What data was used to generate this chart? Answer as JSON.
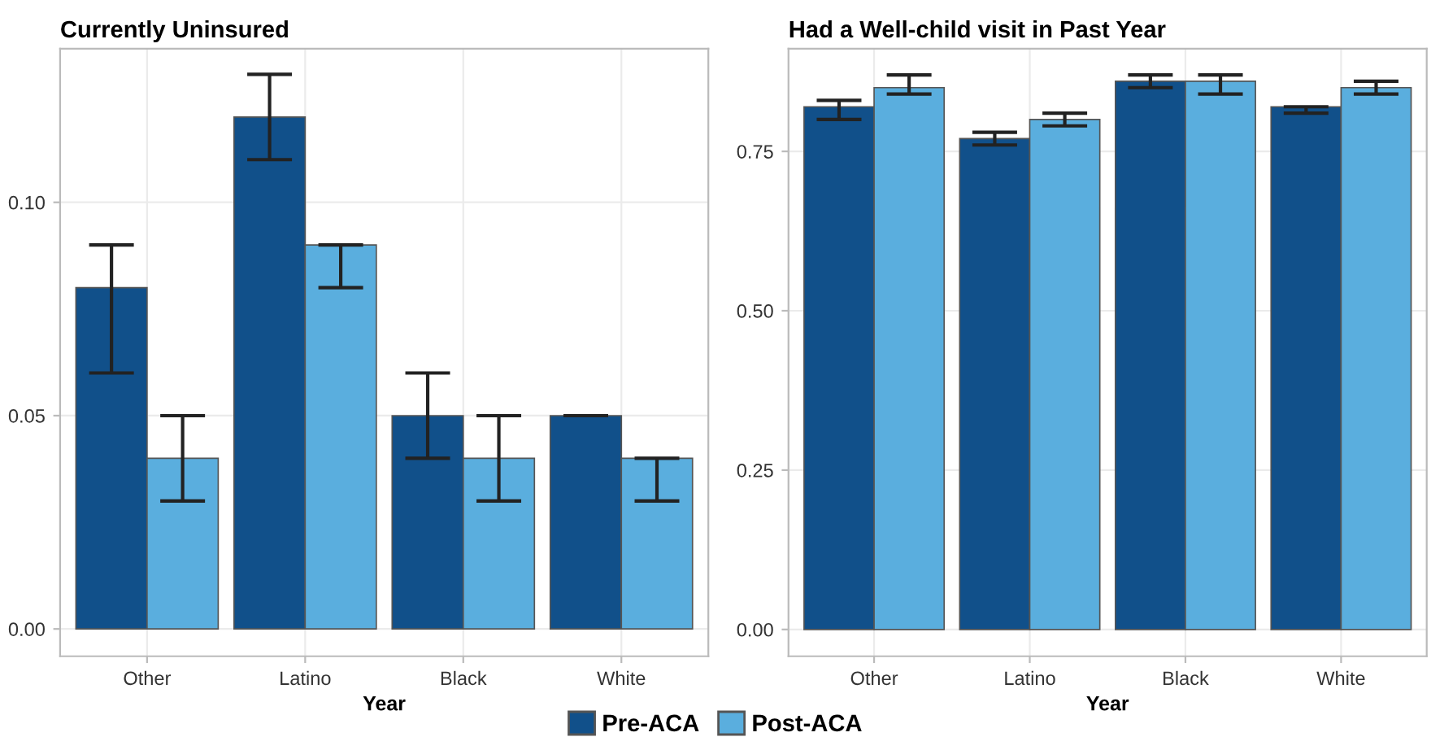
{
  "chart_data": [
    {
      "type": "bar",
      "title": "Currently Uninsured",
      "xlabel": "Year",
      "categories": [
        "Other",
        "Latino",
        "Black",
        "White"
      ],
      "series": [
        {
          "name": "Pre-ACA",
          "color": "#11508a",
          "values": [
            0.08,
            0.12,
            0.05,
            0.05
          ],
          "errors": [
            [
              0.06,
              0.09
            ],
            [
              0.11,
              0.13
            ],
            [
              0.04,
              0.06
            ],
            [
              0.05,
              0.05
            ]
          ]
        },
        {
          "name": "Post-ACA",
          "color": "#5aaede",
          "values": [
            0.04,
            0.09,
            0.04,
            0.04
          ],
          "errors": [
            [
              0.03,
              0.05
            ],
            [
              0.08,
              0.09
            ],
            [
              0.03,
              0.05
            ],
            [
              0.03,
              0.04
            ]
          ]
        }
      ],
      "ylim": [
        -0.0064,
        0.136
      ],
      "yticks": [
        {
          "value": 0,
          "label": "0.00"
        },
        {
          "value": 0.05,
          "label": "0.05"
        },
        {
          "value": 0.1,
          "label": "0.10"
        }
      ],
      "grid": true,
      "legend": "bottom"
    },
    {
      "type": "bar",
      "title": "Had a Well-child visit in Past Year",
      "xlabel": "Year",
      "categories": [
        "Other",
        "Latino",
        "Black",
        "White"
      ],
      "series": [
        {
          "name": "Pre-ACA",
          "color": "#11508a",
          "values": [
            0.82,
            0.77,
            0.86,
            0.82
          ],
          "errors": [
            [
              0.8,
              0.83
            ],
            [
              0.76,
              0.78
            ],
            [
              0.85,
              0.87
            ],
            [
              0.81,
              0.82
            ]
          ]
        },
        {
          "name": "Post-ACA",
          "color": "#5aaede",
          "values": [
            0.85,
            0.8,
            0.86,
            0.85
          ],
          "errors": [
            [
              0.84,
              0.87
            ],
            [
              0.79,
              0.81
            ],
            [
              0.84,
              0.87
            ],
            [
              0.84,
              0.86
            ]
          ]
        }
      ],
      "ylim": [
        -0.042,
        0.911
      ],
      "yticks": [
        {
          "value": 0,
          "label": "0.00"
        },
        {
          "value": 0.25,
          "label": "0.25"
        },
        {
          "value": 0.5,
          "label": "0.50"
        },
        {
          "value": 0.75,
          "label": "0.75"
        }
      ],
      "grid": true,
      "legend": "bottom"
    }
  ]
}
